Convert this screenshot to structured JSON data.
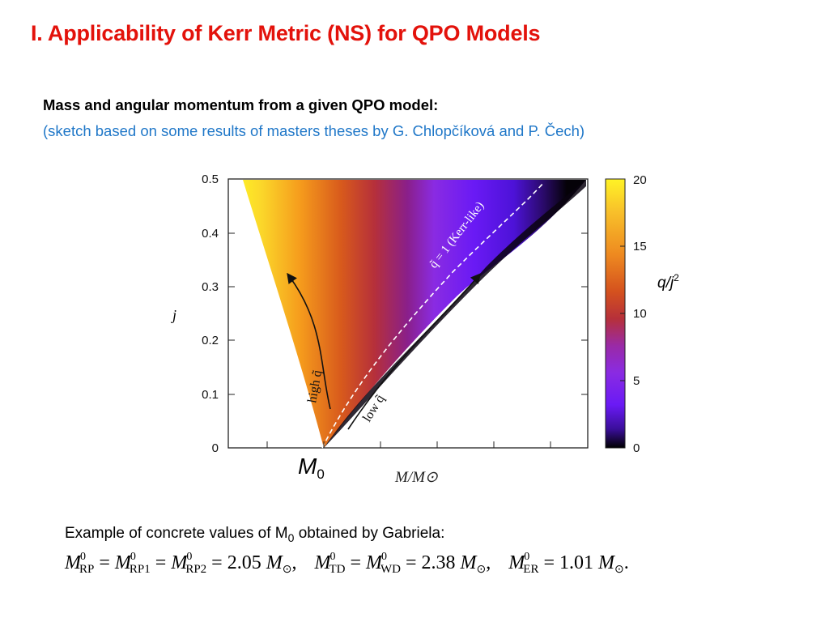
{
  "slide": {
    "title": "I. Applicability of Kerr Metric (NS) for QPO Models",
    "heading": "Mass and angular momentum from a given QPO model:",
    "subheading": "(sketch based on some results of masters theses  by G. Chlopčíková and P. Čech)"
  },
  "annotations": {
    "m0_symbol": "M",
    "m0_subscript": "0",
    "xlabel": "M/M⊙",
    "ylabel": "j",
    "colorbar_label_q": "q/j",
    "colorbar_label_sup": "2",
    "curve_label": "q̃ = 1 (Kerr-like)",
    "arrow_high": "high q̃",
    "arrow_low": "low q̃"
  },
  "chart_data": {
    "type": "heatmap",
    "ylabel": "j",
    "xlabel": "M/M⊙",
    "y_ticks": [
      "0.5",
      "0.4",
      "0.3",
      "0.2",
      "0.1",
      "0"
    ],
    "ylim": [
      0,
      0.5
    ],
    "colorbar": {
      "label": "q/j2",
      "ticks": [
        "20",
        "15",
        "10",
        "5",
        "0"
      ],
      "range": [
        0,
        20
      ],
      "colormap": "plasma-like",
      "colors": [
        "#fff02a",
        "#f7a21a",
        "#d9501c",
        "#a01d54",
        "#8a1fe6",
        "#5a14f5",
        "#000000"
      ]
    },
    "boundary_curve": "q̃ = 1 (Kerr-like)",
    "x_tick_labels": "none"
  },
  "example": {
    "text": "Example of concrete values of M",
    "sub": "0",
    "text_after": " obtained by Gabriela",
    "colon": ":",
    "rp_value": "2.05",
    "td_value": "2.38",
    "er_value": "1.01"
  }
}
